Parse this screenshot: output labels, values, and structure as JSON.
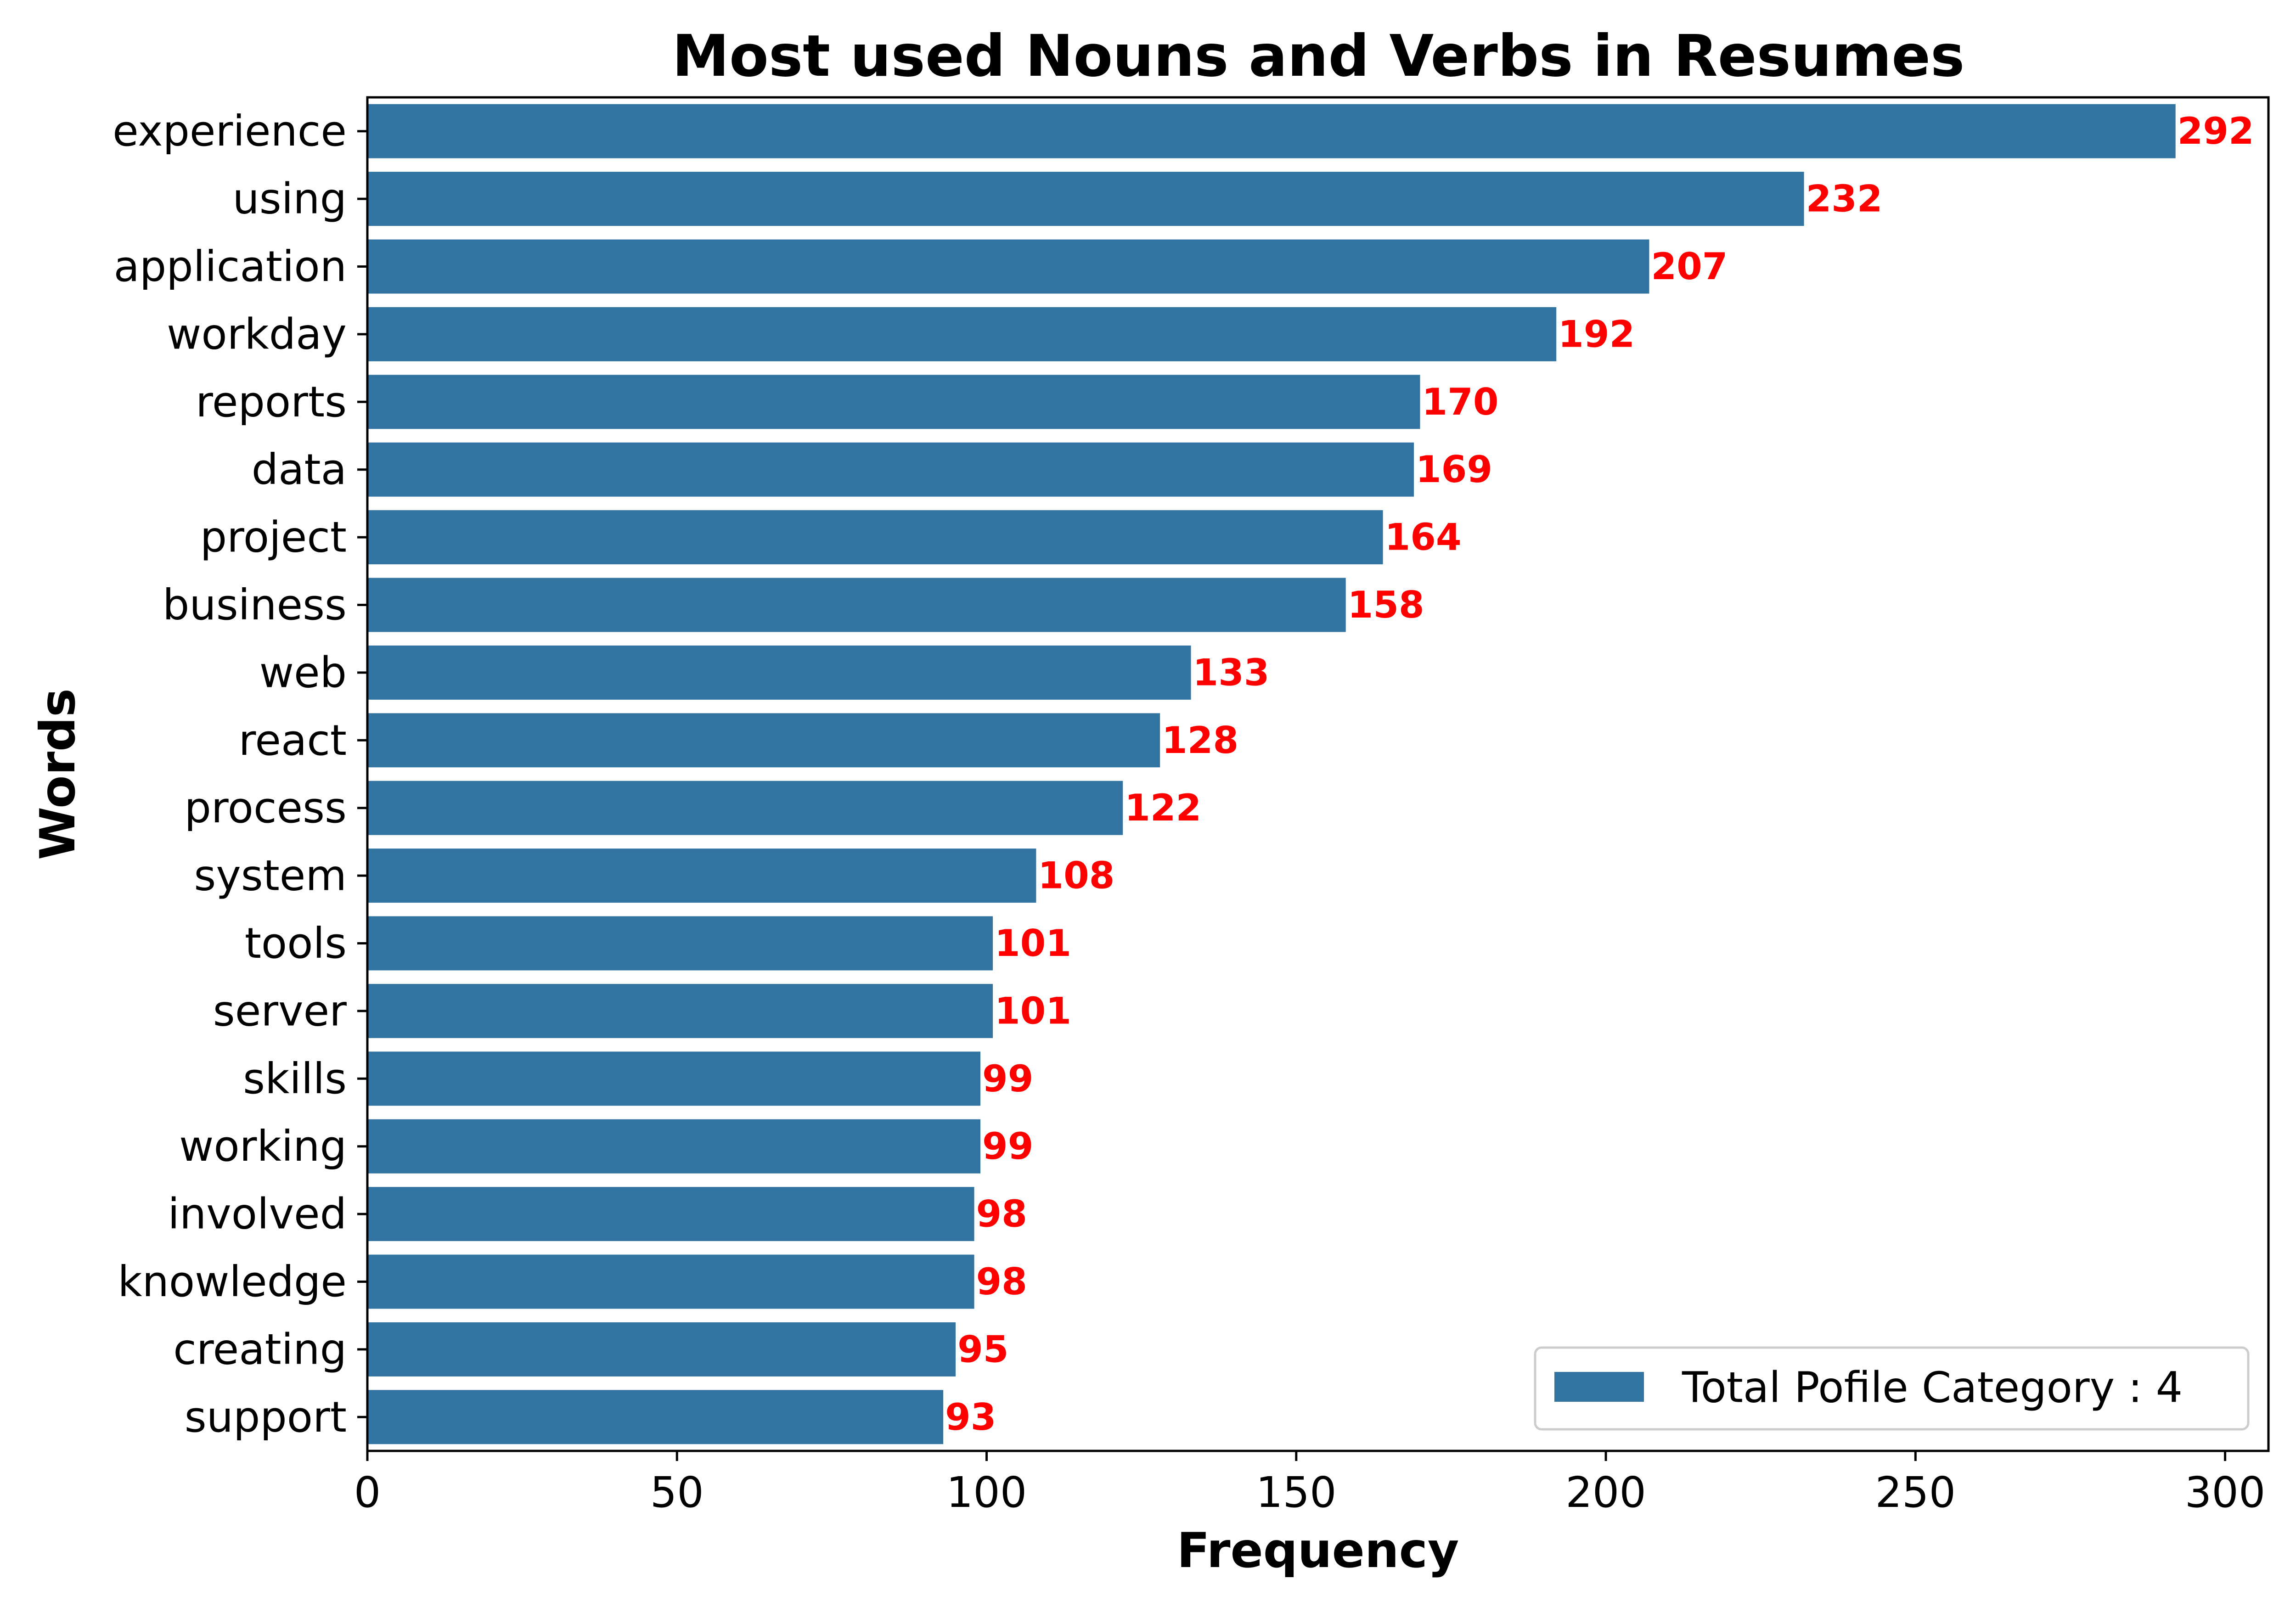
{
  "chart_data": {
    "type": "bar",
    "orientation": "horizontal",
    "title": "Most used Nouns and Verbs in Resumes",
    "xlabel": "Frequency",
    "ylabel": "Words",
    "xlim": [
      0,
      307
    ],
    "xticks": [
      0,
      50,
      100,
      150,
      200,
      250,
      300
    ],
    "grid": false,
    "legend_position": "lower-right",
    "categories": [
      "experience",
      "using",
      "application",
      "workday",
      "reports",
      "data",
      "project",
      "business",
      "web",
      "react",
      "process",
      "system",
      "tools",
      "server",
      "skills",
      "working",
      "involved",
      "knowledge",
      "creating",
      "support"
    ],
    "series": [
      {
        "name": "Total Pofile Category : 4",
        "values": [
          292,
          232,
          207,
          192,
          170,
          169,
          164,
          158,
          133,
          128,
          122,
          108,
          101,
          101,
          99,
          99,
          98,
          98,
          95,
          93
        ]
      }
    ],
    "colors": {
      "bar": "#3274a1",
      "data_label": "#ff0000"
    }
  }
}
